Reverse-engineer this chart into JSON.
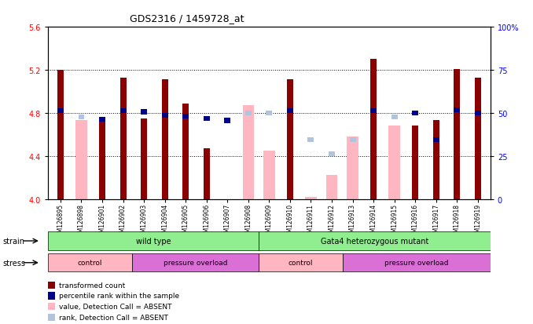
{
  "title": "GDS2316 / 1459728_at",
  "samples": [
    "GSM126895",
    "GSM126898",
    "GSM126901",
    "GSM126902",
    "GSM126903",
    "GSM126904",
    "GSM126905",
    "GSM126906",
    "GSM126907",
    "GSM126908",
    "GSM126909",
    "GSM126910",
    "GSM126911",
    "GSM126912",
    "GSM126913",
    "GSM126914",
    "GSM126915",
    "GSM126916",
    "GSM126917",
    "GSM126918",
    "GSM126919"
  ],
  "transformed_count": [
    5.2,
    null,
    4.72,
    5.13,
    4.75,
    5.11,
    4.89,
    4.47,
    3.95,
    null,
    null,
    5.11,
    null,
    null,
    null,
    5.3,
    null,
    4.68,
    4.73,
    5.21,
    5.13
  ],
  "percentile_rank": [
    4.82,
    null,
    4.74,
    4.82,
    4.81,
    4.78,
    4.77,
    4.75,
    4.73,
    null,
    null,
    4.82,
    null,
    null,
    null,
    4.82,
    null,
    4.8,
    4.55,
    4.83,
    4.8
  ],
  "absent_value": [
    null,
    4.73,
    null,
    null,
    null,
    null,
    null,
    null,
    null,
    4.87,
    4.45,
    null,
    4.02,
    4.22,
    4.58,
    null,
    4.68,
    null,
    null,
    null,
    null
  ],
  "absent_rank": [
    null,
    4.76,
    null,
    null,
    null,
    null,
    null,
    null,
    null,
    4.8,
    4.8,
    null,
    4.55,
    4.42,
    4.55,
    null,
    4.76,
    null,
    null,
    null,
    null
  ],
  "ylim": [
    4.0,
    5.6
  ],
  "yticks_left": [
    4.0,
    4.4,
    4.8,
    5.2,
    5.6
  ],
  "yticks_right": [
    0,
    25,
    50,
    75,
    100
  ],
  "right_ylim": [
    0,
    100
  ],
  "bar_color": "#8B0000",
  "rank_color": "#00008B",
  "absent_bar_color": "#FFB6C1",
  "absent_rank_color": "#B0C4DE",
  "legend_items": [
    {
      "label": "transformed count",
      "color": "#8B0000"
    },
    {
      "label": "percentile rank within the sample",
      "color": "#00008B"
    },
    {
      "label": "value, Detection Call = ABSENT",
      "color": "#FFB6C1"
    },
    {
      "label": "rank, Detection Call = ABSENT",
      "color": "#B0C4DE"
    }
  ]
}
